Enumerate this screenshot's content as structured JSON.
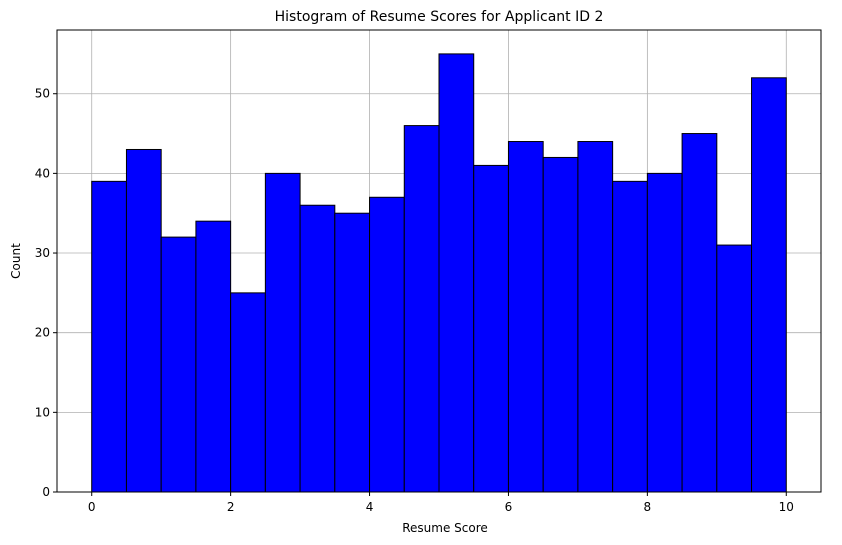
{
  "chart_data": {
    "type": "bar",
    "title": "Histogram of Resume Scores for Applicant ID 2",
    "xlabel": "Resume Score",
    "ylabel": "Count",
    "xlim": [
      -0.5,
      10.5
    ],
    "ylim": [
      0,
      58
    ],
    "xticks": [
      0,
      2,
      4,
      6,
      8,
      10
    ],
    "yticks": [
      0,
      10,
      20,
      30,
      40,
      50
    ],
    "grid": true,
    "bin_edges": [
      0,
      0.5,
      1,
      1.5,
      2,
      2.5,
      3,
      3.5,
      4,
      4.5,
      5,
      5.5,
      6,
      6.5,
      7,
      7.5,
      8,
      8.5,
      9,
      9.5,
      10
    ],
    "values": [
      39,
      43,
      32,
      34,
      25,
      40,
      36,
      35,
      37,
      46,
      55,
      41,
      44,
      42,
      44,
      39,
      40,
      45,
      31,
      52
    ],
    "bar_color": "#0000ff",
    "edge_color": "#000000"
  }
}
